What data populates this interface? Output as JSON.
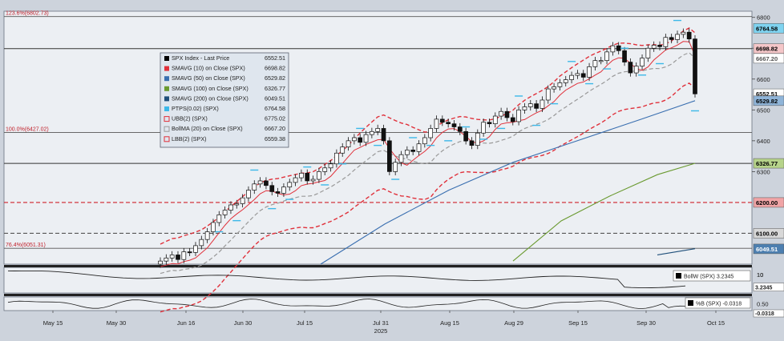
{
  "chart_data": {
    "type": "line",
    "title": "",
    "x_date_labels": [
      "May 15",
      "May 30",
      "Jun 16",
      "Jun 30",
      "Jul 15",
      "Jul 31",
      "Aug 15",
      "Aug 29",
      "Sep 15",
      "Sep 30",
      "Oct 15"
    ],
    "year_label": "2025",
    "price_axis": {
      "ylim": [
        6000,
        6820
      ],
      "ticks": [
        6800,
        6700,
        6600,
        6500,
        6400,
        6300
      ]
    },
    "bollw_axis": {
      "tick_label": "10"
    },
    "pctb_axis": {
      "tick_label": "0.50"
    },
    "fib_levels": [
      {
        "label": "123.6%(6802.73)",
        "value": 6802.73
      },
      {
        "label": "100.0%(6427.02)",
        "value": 6427.02
      },
      {
        "label": "76.4%(6051.31)",
        "value": 6051.31
      }
    ],
    "horizontal_lines": [
      {
        "value": 6200,
        "style": "dashed",
        "color": "#d0202a"
      },
      {
        "value": 6100,
        "style": "dashed",
        "color": "#555555"
      },
      {
        "value": 6326.77,
        "style": "solid",
        "color": "#333333"
      },
      {
        "value": 6698.82,
        "style": "solid",
        "color": "#333333"
      }
    ],
    "right_badges": [
      {
        "text": "6764.58",
        "value": 6764.58,
        "bg": "#7fd3f0",
        "fg": "#000000"
      },
      {
        "text": "6698.82",
        "value": 6698.82,
        "bg": "#f4c6c8",
        "fg": "#000000"
      },
      {
        "text": "6667.20",
        "value": 6667.2,
        "bg": "#ffffff",
        "fg": "#555555"
      },
      {
        "text": "6552.51",
        "value": 6552.51,
        "bg": "#ffffff",
        "fg": "#000000"
      },
      {
        "text": "6529.82",
        "value": 6529.82,
        "bg": "#8fb4d8",
        "fg": "#000000"
      },
      {
        "text": "6326.77",
        "value": 6326.77,
        "bg": "#b6d38a",
        "fg": "#000000"
      },
      {
        "text": "6200.00",
        "value": 6200,
        "bg": "#f0a4a6",
        "fg": "#000000"
      },
      {
        "text": "6100.00",
        "value": 6100,
        "bg": "#d8d8d8",
        "fg": "#000000"
      },
      {
        "text": "6049.51",
        "value": 6049.51,
        "bg": "#4d7fb0",
        "fg": "#ffffff"
      }
    ],
    "legend": [
      {
        "label": "SPX Index - Last Price",
        "value": "6552.51",
        "color": "#000000",
        "style": "box"
      },
      {
        "label": "SMAVG (10)  on Close (SPX)",
        "value": "6698.82",
        "color": "#e0303a",
        "style": "box"
      },
      {
        "label": "SMAVG (50)  on Close (SPX)",
        "value": "6529.82",
        "color": "#3a6fb0",
        "style": "box"
      },
      {
        "label": "SMAVG (100)  on Close (SPX)",
        "value": "6326.77",
        "color": "#6a9a30",
        "style": "box"
      },
      {
        "label": "SMAVG (200)  on Close (SPX)",
        "value": "6049.51",
        "color": "#1f4f7a",
        "style": "box"
      },
      {
        "label": "PTPS(0.02) (SPX)",
        "value": "6764.58",
        "color": "#3cb8e8",
        "style": "box"
      },
      {
        "label": "UBB(2) (SPX)",
        "value": "6775.02",
        "color": "#e0303a",
        "style": "outline"
      },
      {
        "label": "BollMA (20)  on Close (SPX)",
        "value": "6667.20",
        "color": "#999999",
        "style": "outline"
      },
      {
        "label": "LBB(2) (SPX)",
        "value": "6559.38",
        "color": "#e0303a",
        "style": "outline"
      }
    ],
    "close_series": [
      6010,
      6020,
      6030,
      6015,
      6040,
      6038,
      6060,
      6080,
      6105,
      6135,
      6160,
      6175,
      6192,
      6196,
      6215,
      6240,
      6260,
      6270,
      6255,
      6235,
      6230,
      6250,
      6265,
      6280,
      6295,
      6270,
      6275,
      6300,
      6312,
      6325,
      6360,
      6380,
      6400,
      6410,
      6395,
      6420,
      6430,
      6440,
      6400,
      6300,
      6330,
      6355,
      6370,
      6365,
      6390,
      6410,
      6440,
      6470,
      6460,
      6455,
      6445,
      6430,
      6400,
      6385,
      6425,
      6460,
      6455,
      6480,
      6495,
      6475,
      6462,
      6500,
      6510,
      6520,
      6505,
      6532,
      6568,
      6575,
      6588,
      6598,
      6612,
      6618,
      6606,
      6640,
      6660,
      6660,
      6688,
      6708,
      6692,
      6655,
      6620,
      6642,
      6668,
      6700,
      6710,
      6705,
      6735,
      6728,
      6745,
      6752,
      6730,
      6552
    ],
    "bollw_panel": {
      "label": "BollW (SPX)",
      "value": "3.2345",
      "color": "#000000"
    },
    "pctb_panel": {
      "label": "%B (SPX)",
      "value": "-0.0318",
      "color": "#000000"
    }
  }
}
